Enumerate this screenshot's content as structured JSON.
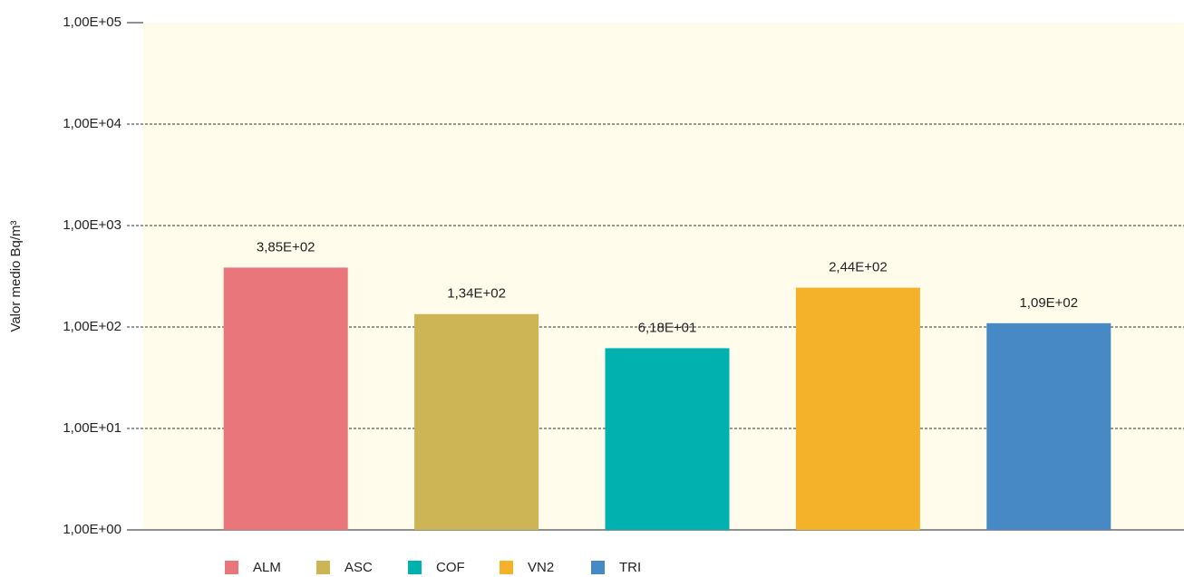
{
  "chart_data": {
    "type": "bar",
    "log": true,
    "ylabel": "Valor medio Bq/m³",
    "categories": [
      "ALM",
      "ASC",
      "COF",
      "VN2",
      "TRI"
    ],
    "values": [
      385,
      134,
      61.8,
      244,
      109
    ],
    "value_labels": [
      "3,85E+02",
      "1,34E+02",
      "6,18E+01",
      "2,44E+02",
      "1,09E+02"
    ],
    "colors": [
      "#e8767a",
      "#cdb454",
      "#00b1b0",
      "#f3b229",
      "#4689c4"
    ],
    "ylim": [
      1,
      100000
    ],
    "yticks": [
      {
        "value": 1,
        "label": "1,00E+00"
      },
      {
        "value": 10,
        "label": "1,00E+01"
      },
      {
        "value": 100,
        "label": "1,00E+02"
      },
      {
        "value": 1000,
        "label": "1,00E+03"
      },
      {
        "value": 10000,
        "label": "1,00E+04"
      },
      {
        "value": 100000,
        "label": "1,00E+05"
      }
    ],
    "grid": true,
    "legend": "bottom"
  }
}
